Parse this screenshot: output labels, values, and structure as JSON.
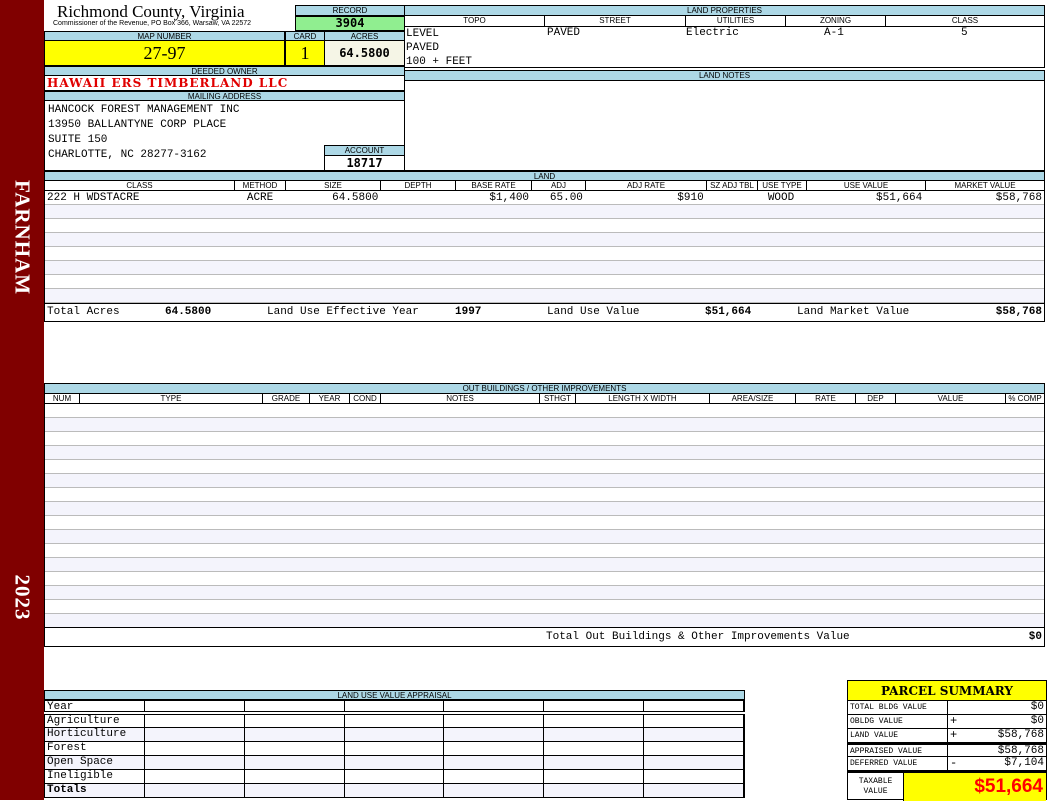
{
  "sidebar": {
    "district": "FARNHAM",
    "year": "2023",
    "color": "#800000"
  },
  "header": {
    "title": "Richmond County, Virginia",
    "subtitle": "Commissioner of the Revenue, PO Box 366, Warsaw, VA 22572",
    "record_label": "RECORD",
    "record": "3904"
  },
  "parcel": {
    "map_number_label": "MAP NUMBER",
    "map_number": "27-97",
    "card_label": "CARD",
    "card": "1",
    "acres_label": "ACRES",
    "acres": "64.5800"
  },
  "owner": {
    "label": "DEEDED OWNER",
    "name": "HAWAII ERS TIMBERLAND LLC"
  },
  "mailing": {
    "label": "MAILING ADDRESS",
    "lines": [
      "HANCOCK FOREST MANAGEMENT INC",
      "13950 BALLANTYNE CORP PLACE",
      "SUITE 150",
      "CHARLOTTE, NC 28277-3162"
    ]
  },
  "account": {
    "label": "ACCOUNT",
    "value": "18717"
  },
  "land_properties": {
    "label": "LAND PROPERTIES",
    "headers": [
      "TOPO",
      "STREET",
      "UTILITIES",
      "ZONING",
      "CLASS"
    ],
    "topo": [
      "LEVEL",
      "PAVED",
      "100 + FEET"
    ],
    "street": "PAVED",
    "utilities": "Electric",
    "zoning": "A-1",
    "class": "5"
  },
  "land_notes": {
    "label": "LAND NOTES"
  },
  "land": {
    "label": "LAND",
    "headers": [
      "CLASS",
      "METHOD",
      "SIZE",
      "DEPTH",
      "BASE RATE",
      "ADJ",
      "ADJ RATE",
      "SZ ADJ TBL",
      "USE TYPE",
      "USE VALUE",
      "MARKET VALUE"
    ],
    "rows": [
      [
        "222 H WDSTACRE",
        "ACRE",
        "64.5800",
        "",
        "$1,400",
        "65.00",
        "$910",
        "",
        "WOOD",
        "$51,664",
        "$58,768"
      ]
    ],
    "totals": {
      "acres_label": "Total Acres",
      "acres": "64.5800",
      "year_label": "Land Use Effective Year",
      "year": "1997",
      "use_label": "Land Use Value",
      "use": "$51,664",
      "market_label": "Land Market Value",
      "market": "$58,768"
    }
  },
  "outbuildings": {
    "label": "OUT BUILDINGS / OTHER IMPROVEMENTS",
    "headers": [
      "NUM",
      "TYPE",
      "GRADE",
      "YEAR",
      "COND",
      "NOTES",
      "STHGT",
      "LENGTH X WIDTH",
      "AREA/SIZE",
      "RATE",
      "DEP",
      "VALUE",
      "% COMP"
    ],
    "total_label": "Total Out Buildings & Other Improvements Value",
    "total": "$0"
  },
  "land_use_appraisal": {
    "label": "LAND USE VALUE APPRAISAL",
    "rows": [
      "Year",
      "Agriculture",
      "Horticulture",
      "Forest",
      "Open Space",
      "Ineligible",
      "Totals"
    ]
  },
  "summary": {
    "title": "PARCEL SUMMARY",
    "rows": [
      {
        "label": "TOTAL BLDG VALUE",
        "op": "",
        "value": "$0"
      },
      {
        "label": "OBLDG VALUE",
        "op": "+",
        "value": "$0"
      },
      {
        "label": "LAND VALUE",
        "op": "+",
        "value": "$58,768"
      },
      {
        "label": "APPRAISED VALUE",
        "op": "",
        "value": "$58,768"
      },
      {
        "label": "DEFERRED VALUE",
        "op": "-",
        "value": "$7,104"
      }
    ],
    "taxable_label": "TAXABLE VALUE",
    "taxable": "$51,664",
    "highlight": "#ffff00",
    "taxable_color": "#ff0000"
  }
}
